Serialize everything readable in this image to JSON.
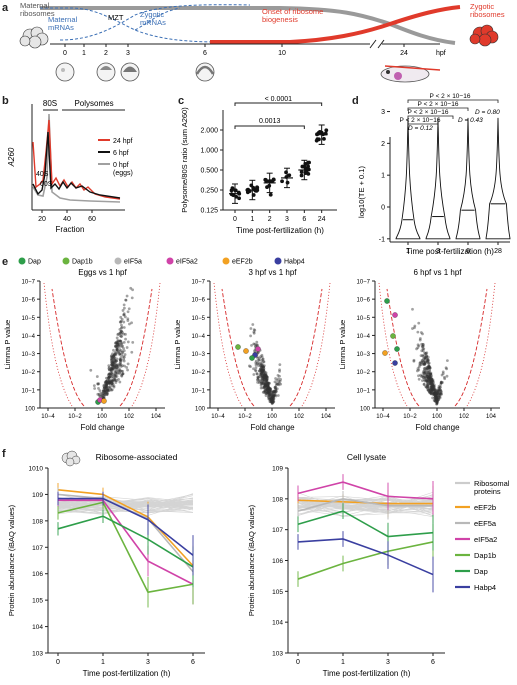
{
  "panels": {
    "a": {
      "letter": "a",
      "maternal_ribosomes": "Maternal\nribosomes",
      "maternal_mrnas": "Maternal\nmRNAs",
      "mzt": "MZT",
      "zygotic_mrnas": "Zygotic\nmRNAs",
      "onset": "Onset of ribosome\nbiogenesis",
      "zygotic_ribosomes": "Zygotic\nribosomes",
      "hpf_unit": "hpf",
      "timepoints": [
        "0",
        "1",
        "2",
        "3",
        "6",
        "10",
        "24"
      ],
      "colors": {
        "maternal": "#3b6fb5",
        "zygotic": "#e03a2b",
        "grey": "#9a9a9a"
      }
    },
    "b": {
      "letter": "b",
      "ylabel": "A260",
      "xlabel": "Fraction",
      "top_80s": "80S",
      "top_polysomes": "Polysomes",
      "label_40s": "40S",
      "label_60s": "60S",
      "legend": [
        "24 hpf",
        "6 hpf",
        "0 hpf\n(eggs)"
      ],
      "xticks": [
        "20",
        "40",
        "60"
      ],
      "colors": [
        "#e03a2b",
        "#111111",
        "#a0a0a0"
      ]
    },
    "c": {
      "letter": "c",
      "ylabel": "Polysome/80S ratio (sum A260)",
      "xlabel": "Time post-fertilization (h)",
      "yticks": [
        "0.125",
        "0.250",
        "0.500",
        "1.000",
        "2.000"
      ],
      "xticks": [
        "0",
        "1",
        "2",
        "3",
        "6",
        "24"
      ],
      "p_top": "< 0.0001",
      "p_low": "0.0013"
    },
    "d": {
      "letter": "d",
      "ylabel": "log10(TE + 0.1)",
      "xlabel": "Time post-fertilization (h)",
      "xticks": [
        "1",
        "3",
        "6",
        "28"
      ],
      "yticks": [
        "-1",
        "0",
        "1",
        "2",
        "3"
      ],
      "stats": [
        "< 2 × 10−16",
        "< 2 × 10−16",
        "D = 0.80",
        "< 2 × 10−16",
        "D = 0.43",
        "< 2 × 10−16",
        "D = 0.12"
      ]
    },
    "e": {
      "letter": "e",
      "legend": [
        {
          "name": "Dap",
          "color": "#2e9e4a"
        },
        {
          "name": "Dap1b",
          "color": "#6bb43f"
        },
        {
          "name": "eIF5a",
          "color": "#b8b8b8"
        },
        {
          "name": "eIF5a2",
          "color": "#d043a8"
        },
        {
          "name": "eEF2b",
          "color": "#f2a122"
        },
        {
          "name": "Habp4",
          "color": "#3a3fa0"
        }
      ],
      "titles": [
        "Eggs vs 1 hpf",
        "3 hpf vs 1 hpf",
        "6 hpf vs 1 hpf"
      ],
      "ylabel": "Limma P value",
      "xlabel": "Fold change",
      "yticks": [
        "10−7",
        "10−6",
        "10−5",
        "10−4",
        "10−3",
        "10−2",
        "10−1",
        "100"
      ],
      "xticks": [
        "10−4",
        "10−2",
        "100",
        "102",
        "104"
      ]
    },
    "f": {
      "letter": "f",
      "titles": [
        "Ribosome-associated",
        "Cell lysate"
      ],
      "ylabel": "Protein abundance (iBAQ values)",
      "xlabel": "Time post-fertilization (h)",
      "xticks": [
        "0",
        "1",
        "3",
        "6"
      ],
      "yticks": [
        "103",
        "104",
        "105",
        "106",
        "107",
        "108",
        "109",
        "1010"
      ],
      "legend": [
        {
          "name": "Ribosomal\nproteins",
          "color": "#cccccc"
        },
        {
          "name": "eEF2b",
          "color": "#f2a122"
        },
        {
          "name": "eEF5a",
          "color": "#b8b8b8"
        },
        {
          "name": "eIF5a2",
          "color": "#d043a8"
        },
        {
          "name": "Dap1b",
          "color": "#6bb43f"
        },
        {
          "name": "Dap",
          "color": "#2e9e4a"
        },
        {
          "name": "Habp4",
          "color": "#3a3fa0"
        }
      ]
    }
  },
  "chart_data": [
    {
      "type": "bar",
      "panel": "c",
      "categories": [
        "0",
        "1",
        "2",
        "3",
        "6",
        "24"
      ],
      "values": [
        0.22,
        0.25,
        0.32,
        0.38,
        0.5,
        1.7
      ],
      "ylabel": "Polysome/80S ratio (sum A260)",
      "xlabel": "Time post-fertilization (h)",
      "ylim": [
        0.125,
        4
      ],
      "yscale": "log2"
    },
    {
      "type": "line",
      "panel": "f-left",
      "categories": [
        "0",
        "1",
        "3",
        "6"
      ],
      "series": [
        {
          "name": "eEF2b",
          "values": [
            1500000000,
            1000000000,
            140000000,
            2000000
          ]
        },
        {
          "name": "eEF5a",
          "values": [
            1000000000,
            700000000,
            120000000,
            1200000
          ]
        },
        {
          "name": "eIF5a2",
          "values": [
            600000000,
            600000000,
            3000000,
            400000
          ]
        },
        {
          "name": "Dap1b",
          "values": [
            200000000,
            500000000,
            200000,
            400000
          ]
        },
        {
          "name": "Dap",
          "values": [
            50000000,
            150000000,
            20000000,
            1800000
          ]
        },
        {
          "name": "Habp4",
          "values": [
            700000000,
            700000000,
            110000000,
            5000000
          ]
        }
      ],
      "ylim": [
        1000,
        10000000000
      ],
      "yscale": "log"
    },
    {
      "type": "line",
      "panel": "f-right",
      "categories": [
        "0",
        "1",
        "3",
        "6"
      ],
      "series": [
        {
          "name": "eEF2b",
          "values": [
            90000000,
            80000000,
            70000000,
            70000000
          ]
        },
        {
          "name": "eEF5a",
          "values": [
            40000000,
            100000000,
            60000000,
            60000000
          ]
        },
        {
          "name": "eIF5a2",
          "values": [
            150000000,
            350000000,
            120000000,
            100000000
          ]
        },
        {
          "name": "Dap1b",
          "values": [
            250000,
            800000,
            2000000,
            4000000
          ]
        },
        {
          "name": "Dap",
          "values": [
            15000000,
            40000000,
            6000000,
            8000000
          ]
        },
        {
          "name": "Habp4",
          "values": [
            4000000,
            5000000,
            1500000,
            350000
          ]
        }
      ],
      "ylim": [
        1000,
        1000000000
      ],
      "yscale": "log"
    }
  ]
}
